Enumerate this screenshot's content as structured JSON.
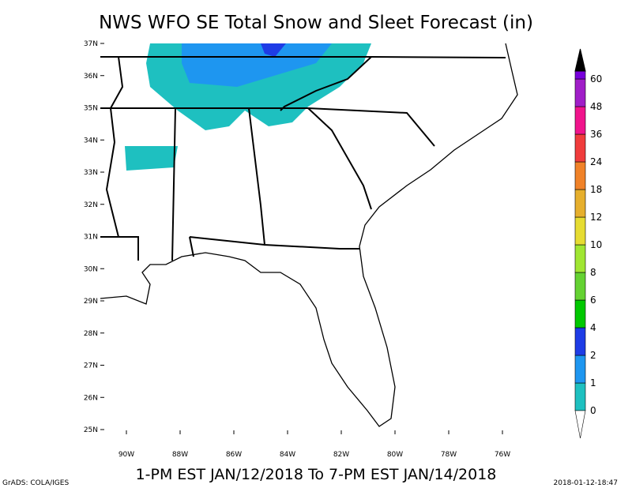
{
  "header": {
    "title": "NWS WFO SE Total Snow and Sleet Forecast (in)"
  },
  "map": {
    "lat_labels": [
      "37N",
      "36N",
      "35N",
      "34N",
      "33N",
      "32N",
      "31N",
      "30N",
      "29N",
      "28N",
      "27N",
      "26N",
      "25N"
    ],
    "lon_labels": [
      "90W",
      "88W",
      "86W",
      "84W",
      "82W",
      "80W",
      "78W",
      "76W"
    ]
  },
  "legend": {
    "levels": [
      {
        "label": 0,
        "color": "#1ec0c0"
      },
      {
        "label": 1,
        "color": "#1e96f0"
      },
      {
        "label": 2,
        "color": "#1e3ce6"
      },
      {
        "label": 4,
        "color": "#00c800"
      },
      {
        "label": 6,
        "color": "#64d232"
      },
      {
        "label": 8,
        "color": "#a0e632"
      },
      {
        "label": 10,
        "color": "#e6dc32"
      },
      {
        "label": 12,
        "color": "#e6af2d"
      },
      {
        "label": 18,
        "color": "#f08228"
      },
      {
        "label": 24,
        "color": "#f03c3c"
      },
      {
        "label": 36,
        "color": "#f0148c"
      },
      {
        "label": 48,
        "color": "#a01ec8"
      },
      {
        "label": 60,
        "color": "#7800dc"
      }
    ]
  },
  "footer": {
    "valid_period": "1-PM EST JAN/12/2018 To 7-PM EST JAN/14/2018",
    "credit": "GrADS: COLA/IGES",
    "timestamp": "2018-01-12-18:47"
  }
}
